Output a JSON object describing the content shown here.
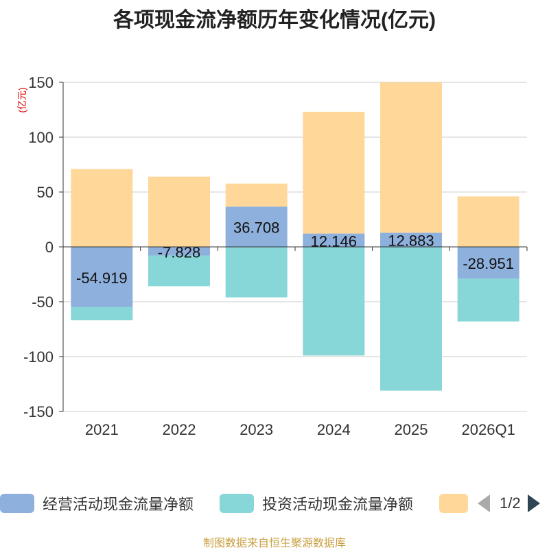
{
  "chart_data": {
    "type": "bar",
    "stacked": true,
    "title": "各项现金流净额历年变化情况(亿元)",
    "ylabel": "(亿元)",
    "xlabel": "",
    "categories": [
      "2021",
      "2022",
      "2023",
      "2024",
      "2025",
      "2026Q1"
    ],
    "ylim": [
      -150,
      150
    ],
    "yticks": [
      150,
      100,
      50,
      0,
      -50,
      -100,
      -150
    ],
    "grid": true,
    "series": [
      {
        "name": "经营活动现金流量净额",
        "color": "#8eb0dc",
        "values": [
          -54.919,
          -7.828,
          36.708,
          12.146,
          12.883,
          -28.951
        ],
        "labels": [
          "-54.919",
          "-7.828",
          "36.708",
          "12.146",
          "12.883",
          "-28.951"
        ]
      },
      {
        "name": "投资活动现金流量净额",
        "color": "#87d6d8",
        "values": [
          -12,
          -28,
          -46,
          -99,
          -131,
          -39
        ]
      },
      {
        "name": "",
        "color": "#ffd899",
        "values": [
          71,
          64,
          21,
          111,
          137,
          46
        ]
      }
    ]
  },
  "legend": {
    "items": [
      {
        "label": "经营活动现金流量净额",
        "color": "#8eb0dc"
      },
      {
        "label": "投资活动现金流量净额",
        "color": "#87d6d8"
      },
      {
        "label": "",
        "color": "#ffd899"
      }
    ],
    "page": "1/2"
  },
  "source": "制图数据来自恒生聚源数据库"
}
